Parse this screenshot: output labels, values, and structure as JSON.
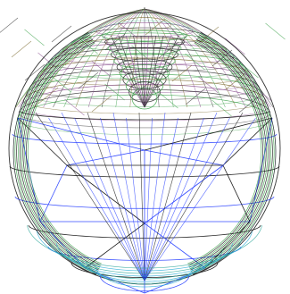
{
  "figure": {
    "subject": "wireframe-sphere-render",
    "background": "#ffffff",
    "palette": {
      "upper_shell_dark": "#2f2f2f",
      "upper_shell_green": "#3fa34d",
      "upper_shell_olive": "#7b6a2e",
      "upper_shell_magenta": "#8a4f8f",
      "lower_shell_black": "#111111",
      "lower_shell_blue": "#2b43ff",
      "lower_shell_cyan": "#22a9d6",
      "lower_shell_teal": "#2ca69a"
    }
  }
}
